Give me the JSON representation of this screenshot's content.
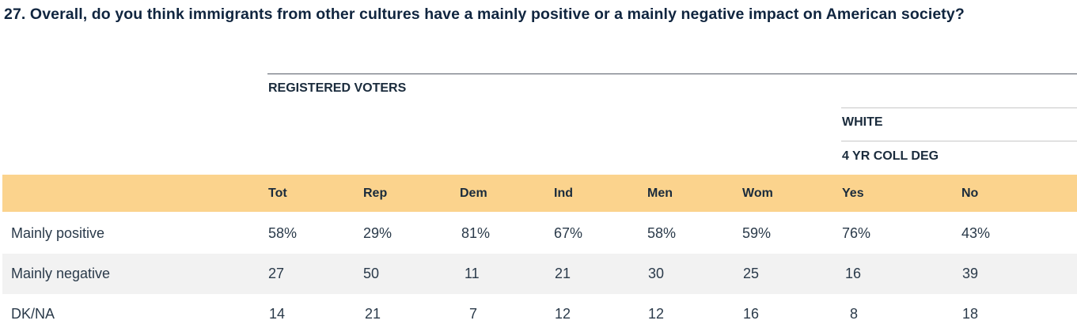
{
  "question": "27. Overall, do you think immigrants from other cultures have a mainly positive or a mainly negative impact on American society?",
  "groups": {
    "registered_voters": "REGISTERED VOTERS",
    "white": "WHITE",
    "college": "4 YR COLL DEG"
  },
  "columns": [
    "Tot",
    "Rep",
    "Dem",
    "Ind",
    "Men",
    "Wom",
    "Yes",
    "No"
  ],
  "rows": [
    {
      "label": "Mainly positive",
      "values": [
        "58%",
        "29%",
        "81%",
        "67%",
        "58%",
        "59%",
        "76%",
        "43%"
      ]
    },
    {
      "label": "Mainly negative",
      "values": [
        "27",
        "50",
        "11",
        "21",
        "30",
        "25",
        "16",
        "39"
      ]
    },
    {
      "label": "DK/NA",
      "values": [
        "14",
        "21",
        "7",
        "12",
        "12",
        "16",
        "8",
        "18"
      ]
    }
  ],
  "colors": {
    "header_band": "#fbd38d",
    "alt_row": "#f2f2f2",
    "title": "#10253f"
  }
}
